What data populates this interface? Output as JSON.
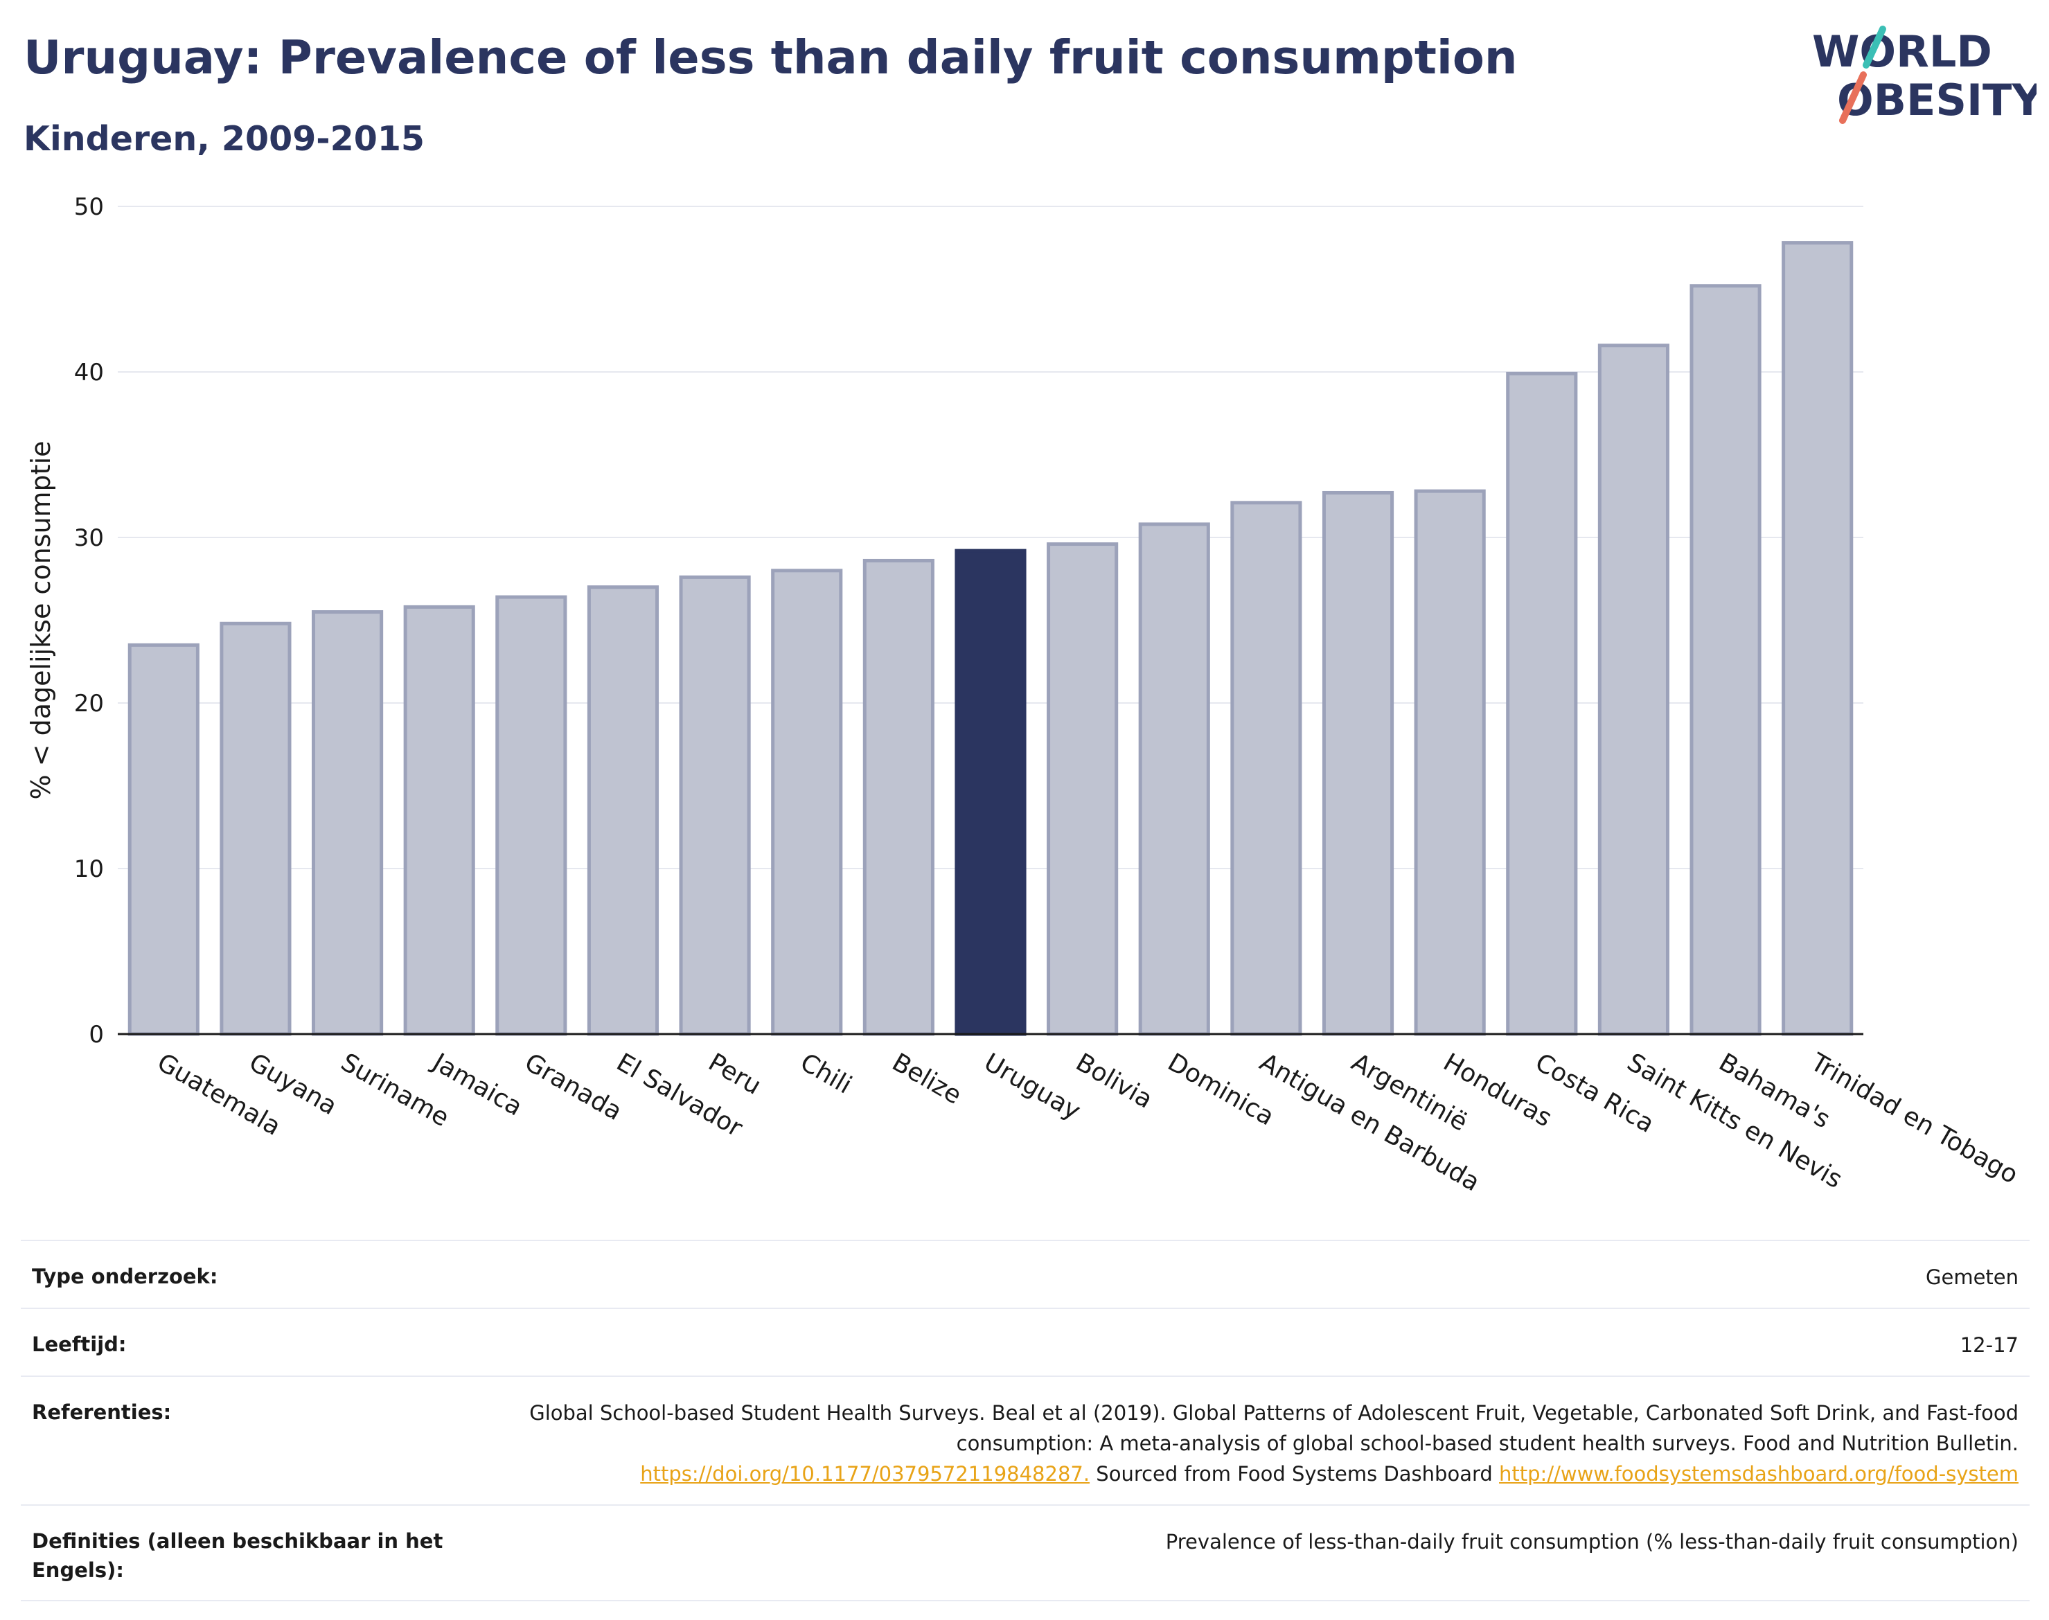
{
  "header": {
    "title": "Uruguay: Prevalence of less than daily fruit consumption",
    "subtitle": "Kinderen, 2009-2015"
  },
  "logo": {
    "line1": "WORLD",
    "line2": "OBESITY"
  },
  "colors": {
    "highlight": "#2b3560",
    "bar": "#bfc3d1",
    "bar_edge": "#9ca2ba",
    "link": "#e8a317",
    "logo_teal": "#3bbfb5",
    "logo_coral": "#e8705a"
  },
  "chart_data": {
    "type": "bar",
    "title": "Uruguay: Prevalence of less than daily fruit consumption",
    "subtitle": "Kinderen, 2009-2015",
    "ylabel": "% < dagelijkse consumptie",
    "xlabel": "",
    "ylim": [
      0,
      50
    ],
    "yticks": [
      0,
      10,
      20,
      30,
      40,
      50
    ],
    "grid": true,
    "highlight": "Uruguay",
    "categories": [
      "Guatemala",
      "Guyana",
      "Suriname",
      "Jamaica",
      "Granada",
      "El Salvador",
      "Peru",
      "Chili",
      "Belize",
      "Uruguay",
      "Bolivia",
      "Dominica",
      "Antigua en Barbuda",
      "Argentinië",
      "Honduras",
      "Costa Rica",
      "Saint Kitts en Nevis",
      "Bahama's",
      "Trinidad en Tobago"
    ],
    "values": [
      23.5,
      24.8,
      25.5,
      25.8,
      26.4,
      27.0,
      27.6,
      28.0,
      28.6,
      29.2,
      29.6,
      30.8,
      32.1,
      32.7,
      32.8,
      39.9,
      41.6,
      45.2,
      47.8
    ]
  },
  "meta": {
    "type_label": "Type onderzoek:",
    "type_value": "Gemeten",
    "age_label": "Leeftijd:",
    "age_value": "12-17",
    "ref_label": "Referenties:",
    "ref_text": "Global School-based Student Health Surveys. Beal et al (2019). Global Patterns of Adolescent Fruit, Vegetable, Carbonated Soft Drink, and Fast-food consumption: A meta-analysis of global school-based student health surveys. Food and Nutrition Bulletin.",
    "ref_link1": "https://doi.org/10.1177/0379572119848287.",
    "ref_mid": "Sourced from Food Systems Dashboard",
    "ref_link2": "http://www.foodsystemsdashboard.org/food-system",
    "def_label": "Definities (alleen beschikbaar in het Engels):",
    "def_value": "Prevalence of less-than-daily fruit consumption (% less-than-daily fruit consumption)"
  }
}
